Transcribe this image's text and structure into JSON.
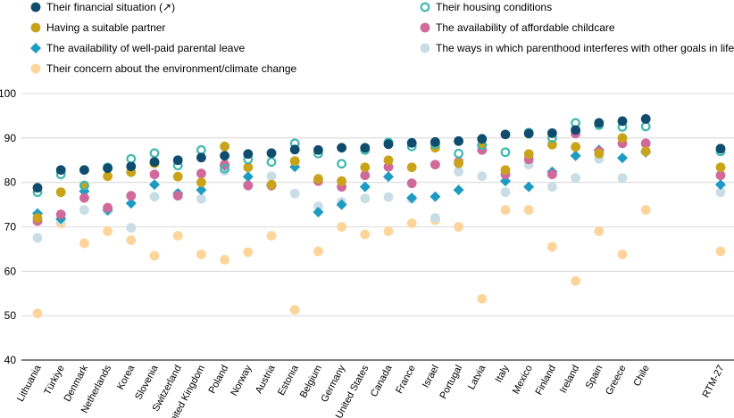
{
  "chart_data": {
    "type": "scatter",
    "categories": [
      "Lithuania",
      "Türkiye",
      "Denmark",
      "Netherlands",
      "Korea",
      "Slovenia",
      "Switzerland",
      "United Kingdom",
      "Poland",
      "Norway",
      "Austria",
      "Estonia",
      "Belgium",
      "Germany",
      "United States",
      "Canada",
      "France",
      "Israel",
      "Portugal",
      "Latvia",
      "Italy",
      "Mexico",
      "Finland",
      "Ireland",
      "Spain",
      "Greece",
      "Chile",
      "RTM-27"
    ],
    "ylim": [
      40,
      100
    ],
    "yticks": [
      40,
      50,
      60,
      70,
      80,
      90,
      100
    ],
    "grid": "horizontal",
    "legend_position": "top",
    "series": [
      {
        "name": "Their financial situation (↗)",
        "color": "#0f4c6e",
        "marker": "circle",
        "values": [
          78.8,
          82.8,
          82.8,
          83.2,
          83.6,
          84.6,
          85.0,
          85.6,
          86.0,
          86.4,
          86.6,
          87.4,
          87.3,
          87.8,
          87.8,
          88.6,
          88.9,
          89.1,
          89.3,
          89.8,
          90.8,
          91.0,
          91.1,
          91.8,
          93.4,
          93.8,
          94.3,
          87.6
        ]
      },
      {
        "name": "Their housing conditions",
        "color": "#3fb8b0",
        "marker": "ring",
        "values": [
          77.8,
          81.8,
          79.3,
          83.4,
          85.3,
          86.6,
          83.8,
          87.3,
          83.1,
          85.2,
          84.6,
          88.8,
          86.5,
          84.2,
          87.3,
          89.0,
          88.1,
          88.6,
          86.5,
          88.4,
          86.8,
          91.2,
          90.0,
          93.4,
          92.9,
          92.5,
          92.6,
          87.0
        ]
      },
      {
        "name": "Having a suitable partner",
        "color": "#c9a41b",
        "marker": "circle",
        "values": [
          72.0,
          77.8,
          79.3,
          81.4,
          82.3,
          84.3,
          81.3,
          80.0,
          88.1,
          83.4,
          79.5,
          84.8,
          80.8,
          80.3,
          83.4,
          85.0,
          83.4,
          87.8,
          84.3,
          88.4,
          82.8,
          86.4,
          88.5,
          88.0,
          86.5,
          90.0,
          87.0,
          83.4
        ]
      },
      {
        "name": "The availability of affordable childcare",
        "color": "#cf6a9a",
        "marker": "circle",
        "values": [
          71.3,
          72.8,
          76.5,
          74.3,
          77.0,
          81.8,
          77.0,
          82.0,
          84.0,
          79.3,
          79.3,
          84.8,
          80.3,
          79.0,
          81.6,
          83.5,
          79.8,
          84.0,
          84.6,
          87.3,
          81.8,
          85.2,
          81.8,
          91.0,
          87.0,
          88.8,
          88.8,
          81.6
        ]
      },
      {
        "name": "The availability of well-paid parental leave",
        "color": "#1e9bc2",
        "marker": "diamond",
        "values": [
          73.0,
          71.8,
          78.0,
          73.8,
          75.3,
          79.5,
          77.5,
          78.3,
          83.8,
          81.3,
          79.3,
          83.5,
          73.3,
          75.0,
          79.0,
          81.3,
          76.5,
          76.8,
          78.3,
          88.4,
          80.3,
          79.0,
          82.4,
          86.0,
          87.3,
          85.5,
          86.8,
          79.5
        ]
      },
      {
        "name": "The ways in which parenthood interferes with other goals in life",
        "color": "#c9dde6",
        "marker": "circle",
        "values": [
          67.5,
          71.5,
          73.8,
          73.6,
          69.8,
          76.8,
          77.5,
          76.3,
          82.6,
          79.5,
          81.4,
          77.5,
          74.6,
          75.6,
          76.4,
          76.7,
          76.3,
          72.0,
          82.4,
          81.4,
          77.8,
          84.0,
          79.0,
          81.0,
          85.3,
          81.0,
          88.8,
          77.8
        ]
      },
      {
        "name": "Their concern about the environment/climate change",
        "color": "#fdd49a",
        "marker": "circle",
        "values": [
          50.5,
          70.8,
          66.3,
          69.0,
          67.0,
          63.5,
          68.0,
          63.8,
          62.6,
          64.3,
          68.0,
          51.3,
          64.5,
          70.0,
          68.3,
          69.0,
          70.8,
          71.5,
          70.0,
          53.8,
          73.8,
          73.8,
          65.5,
          57.8,
          69.0,
          63.8,
          73.8,
          64.5
        ]
      }
    ]
  }
}
